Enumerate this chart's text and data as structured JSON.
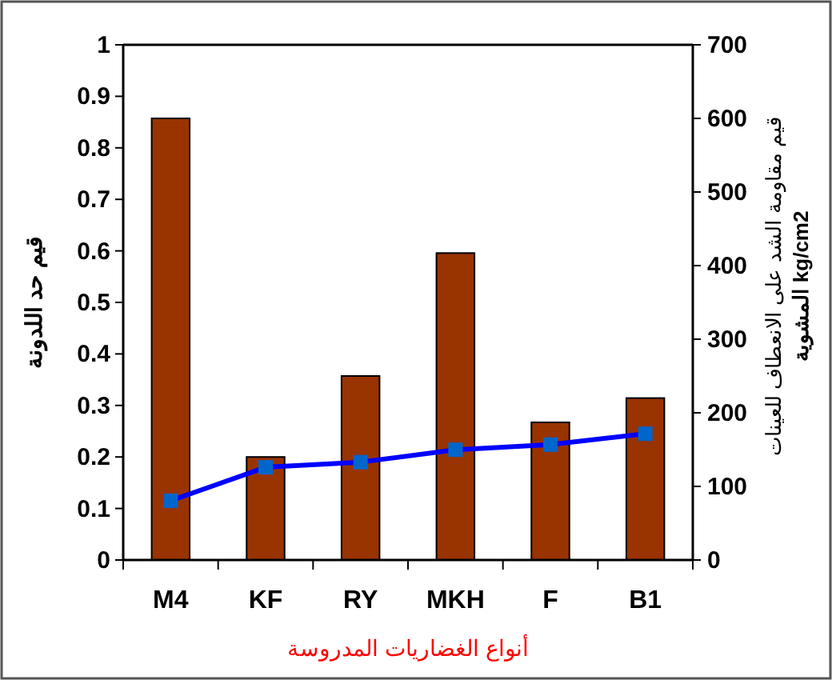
{
  "chart_data": {
    "type": "bar",
    "categories": [
      "M4",
      "KF",
      "RY",
      "MKH",
      "F",
      "B1"
    ],
    "xlabel": "أنواع الغضاريات المدروسة",
    "ylabel": "قيم حد اللدونة",
    "y2label": "قيم مقاومة الشد على الانعطاف للعينات المشوية kg/cm2",
    "series": [
      {
        "axis": "y2",
        "color": "#993300",
        "values": [
          600,
          140,
          250,
          417,
          187,
          220
        ]
      },
      {
        "type": "line",
        "axis": "y",
        "color": "#0000ff",
        "marker": "square",
        "values": [
          0.115,
          0.18,
          0.19,
          0.214,
          0.224,
          0.245
        ]
      }
    ],
    "ylim": [
      0,
      1
    ],
    "yticks": [
      0,
      0.1,
      0.2,
      0.3,
      0.4,
      0.5,
      0.6,
      0.7,
      0.8,
      0.9,
      1
    ],
    "y2lim": [
      0,
      700
    ],
    "y2ticks": [
      0,
      100,
      200,
      300,
      400,
      500,
      600,
      700
    ],
    "grid": false
  }
}
